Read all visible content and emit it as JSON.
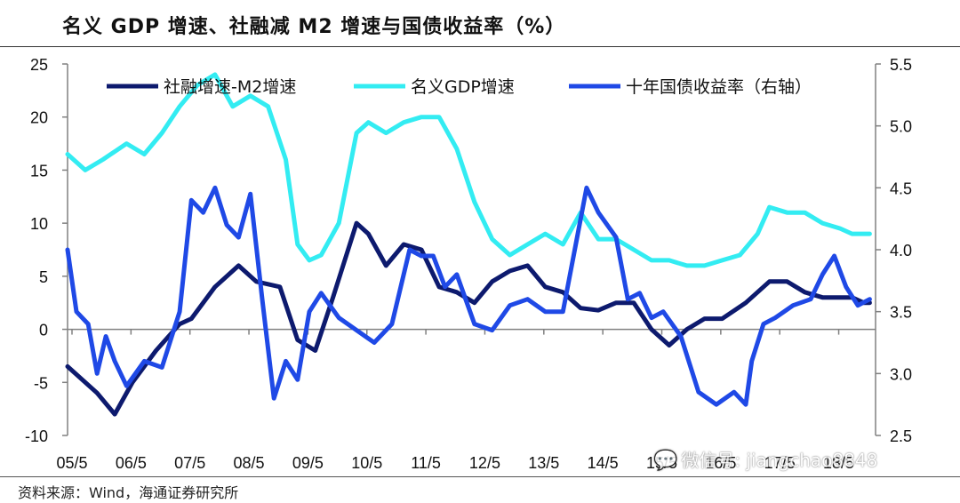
{
  "title": "名义 GDP 增速、社融减 M2 增速与国债收益率（%）",
  "source": "资料来源：Wind，海通证券研究所",
  "watermark": {
    "icon": "wechat-icon",
    "text": "微信号: jiangchao8848"
  },
  "colors": {
    "navy": "#0d1a6e",
    "cyan": "#33ecf2",
    "blue": "#1f49e6",
    "axis": "#808080",
    "text": "#111111"
  },
  "chart_data": {
    "type": "line",
    "x_ticks": [
      "05/5",
      "06/5",
      "07/5",
      "08/5",
      "09/5",
      "10/5",
      "11/5",
      "12/5",
      "13/5",
      "14/5",
      "15/5",
      "16/5",
      "17/5",
      "18/5"
    ],
    "x_range": [
      "2005-01",
      "2018-08"
    ],
    "left_axis": {
      "ylim": [
        -10,
        25
      ],
      "ticks": [
        -10,
        -5,
        0,
        5,
        10,
        15,
        20,
        25
      ]
    },
    "right_axis": {
      "ylim": [
        2.5,
        5.5
      ],
      "ticks": [
        2.5,
        3.0,
        3.5,
        4.0,
        4.5,
        5.0,
        5.5
      ]
    },
    "legend": [
      "社融增速-M2增速",
      "名义GDP增速",
      "十年国债收益率（右轴）"
    ],
    "series": [
      {
        "name": "社融增速-M2增速",
        "axis": "left",
        "color": "#0d1a6e",
        "x": [
          2005.0,
          2005.5,
          2005.8,
          2006.1,
          2006.5,
          2006.9,
          2007.1,
          2007.5,
          2007.9,
          2008.2,
          2008.6,
          2008.9,
          2009.2,
          2009.5,
          2009.9,
          2010.1,
          2010.4,
          2010.7,
          2011.0,
          2011.3,
          2011.6,
          2011.9,
          2012.2,
          2012.5,
          2012.8,
          2013.1,
          2013.4,
          2013.7,
          2014.0,
          2014.3,
          2014.6,
          2014.9,
          2015.2,
          2015.5,
          2015.8,
          2016.1,
          2016.5,
          2016.9,
          2017.2,
          2017.5,
          2017.8,
          2018.1,
          2018.3,
          2018.5,
          2018.6
        ],
        "y": [
          -3.5,
          -6,
          -8,
          -5,
          -2,
          0.5,
          1,
          4,
          6,
          4.5,
          4,
          -1,
          -2,
          3,
          10,
          9,
          6,
          8,
          7.5,
          4,
          3.5,
          2.5,
          4.5,
          5.5,
          6,
          4,
          3.5,
          2,
          1.8,
          2.5,
          2.5,
          0,
          -1.5,
          0,
          1,
          1,
          2.5,
          4.5,
          4.5,
          3.5,
          3,
          3,
          3,
          2.5,
          2.5
        ]
      },
      {
        "name": "名义GDP增速",
        "axis": "left",
        "color": "#33ecf2",
        "x": [
          2005.0,
          2005.3,
          2005.6,
          2006.0,
          2006.3,
          2006.6,
          2006.9,
          2007.2,
          2007.5,
          2007.8,
          2008.1,
          2008.4,
          2008.7,
          2008.9,
          2009.1,
          2009.3,
          2009.6,
          2009.9,
          2010.1,
          2010.4,
          2010.7,
          2011.0,
          2011.3,
          2011.6,
          2011.9,
          2012.2,
          2012.5,
          2012.8,
          2013.1,
          2013.4,
          2013.7,
          2014.0,
          2014.3,
          2014.6,
          2014.9,
          2015.2,
          2015.5,
          2015.8,
          2016.1,
          2016.4,
          2016.7,
          2016.9,
          2017.2,
          2017.5,
          2017.8,
          2018.1,
          2018.3,
          2018.5,
          2018.6
        ],
        "y": [
          16.5,
          15,
          16,
          17.5,
          16.5,
          18.5,
          21,
          23,
          24,
          21,
          22,
          21,
          16,
          8,
          6.5,
          7,
          10,
          18.5,
          19.5,
          18.5,
          19.5,
          20,
          20,
          17,
          12,
          8.5,
          7,
          8,
          9,
          8,
          11,
          8.5,
          8.5,
          7.5,
          6.5,
          6.5,
          6,
          6,
          6.5,
          7,
          9,
          11.5,
          11,
          11,
          10,
          9.5,
          9,
          9,
          9
        ]
      },
      {
        "name": "十年国债收益率（右轴）",
        "axis": "right",
        "color": "#1f49e6",
        "x": [
          2005.0,
          2005.15,
          2005.35,
          2005.5,
          2005.65,
          2005.8,
          2006.0,
          2006.3,
          2006.6,
          2006.9,
          2007.1,
          2007.3,
          2007.5,
          2007.7,
          2007.9,
          2008.1,
          2008.3,
          2008.5,
          2008.7,
          2008.9,
          2009.1,
          2009.3,
          2009.6,
          2009.9,
          2010.2,
          2010.5,
          2010.8,
          2011.0,
          2011.2,
          2011.4,
          2011.6,
          2011.9,
          2012.2,
          2012.5,
          2012.8,
          2013.1,
          2013.4,
          2013.6,
          2013.8,
          2014.0,
          2014.3,
          2014.5,
          2014.7,
          2014.9,
          2015.1,
          2015.4,
          2015.7,
          2016.0,
          2016.3,
          2016.5,
          2016.6,
          2016.8,
          2017.0,
          2017.3,
          2017.6,
          2017.8,
          2018.0,
          2018.2,
          2018.4,
          2018.6
        ],
        "y": [
          4.0,
          3.5,
          3.4,
          3.0,
          3.3,
          3.1,
          2.9,
          3.1,
          3.05,
          3.5,
          4.4,
          4.3,
          4.5,
          4.2,
          4.1,
          4.45,
          3.6,
          2.8,
          3.1,
          2.95,
          3.5,
          3.65,
          3.45,
          3.35,
          3.25,
          3.4,
          4.0,
          3.95,
          3.95,
          3.7,
          3.8,
          3.4,
          3.35,
          3.55,
          3.6,
          3.5,
          3.5,
          4.0,
          4.5,
          4.3,
          4.1,
          3.6,
          3.65,
          3.45,
          3.5,
          3.3,
          2.85,
          2.75,
          2.85,
          2.75,
          3.1,
          3.4,
          3.45,
          3.55,
          3.6,
          3.8,
          3.95,
          3.7,
          3.55,
          3.6
        ]
      }
    ]
  }
}
